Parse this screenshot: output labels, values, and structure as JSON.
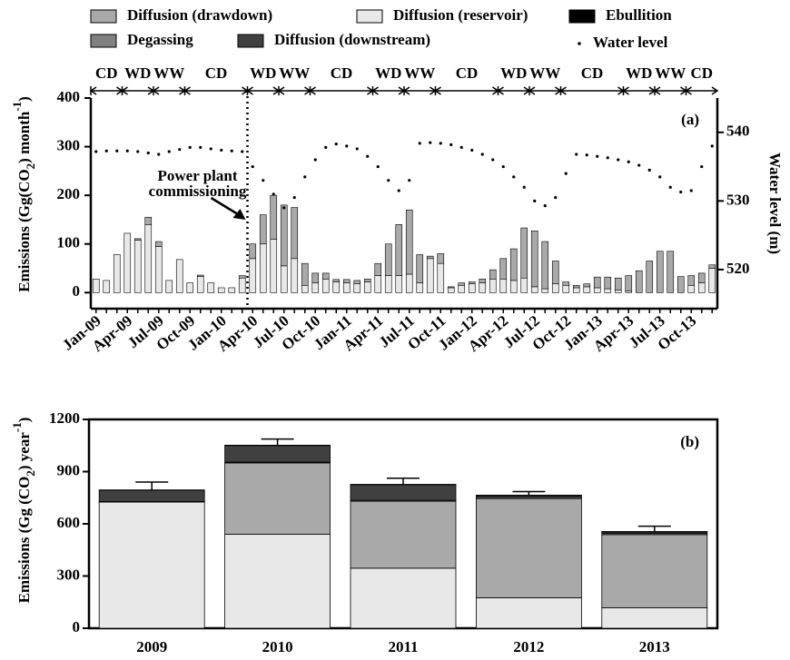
{
  "chart_data": [
    {
      "type": "bar",
      "stacked": true,
      "title": "(a)",
      "ylabel_parts": [
        "Emissions (Gg(CO",
        "2",
        ") month",
        "-1",
        ")"
      ],
      "y2label": "Water level (m)",
      "categories": [
        "Jan-09",
        null,
        null,
        "Apr-09",
        null,
        null,
        "Jul-09",
        null,
        null,
        "Oct-09",
        null,
        null,
        "Jan-10",
        null,
        null,
        "Apr-10",
        null,
        null,
        "Jul-10",
        null,
        null,
        "Oct-10",
        null,
        null,
        "Jan-11",
        null,
        null,
        "Apr-11",
        null,
        null,
        "Jul-11",
        null,
        null,
        "Oct-11",
        null,
        null,
        "Jan-12",
        null,
        null,
        "Apr-12",
        null,
        null,
        "Jul-12",
        null,
        null,
        "Oct-12",
        null,
        null,
        "Jan-13",
        null,
        null,
        "Apr-13",
        null,
        null,
        "Jul-13",
        null,
        null,
        "Oct-13",
        null,
        null
      ],
      "series": [
        {
          "name": "Diffusion (reservoir)",
          "color": "#e8e8e8",
          "values": [
            28,
            25,
            78,
            122,
            108,
            140,
            95,
            25,
            68,
            20,
            33,
            20,
            10,
            10,
            30,
            70,
            100,
            110,
            55,
            70,
            15,
            20,
            28,
            22,
            20,
            18,
            22,
            35,
            35,
            35,
            38,
            20,
            70,
            60,
            10,
            15,
            18,
            20,
            28,
            28,
            25,
            30,
            12,
            8,
            18,
            15,
            10,
            12,
            10,
            8,
            5,
            3,
            0,
            0,
            0,
            0,
            0,
            15,
            20,
            50
          ]
        },
        {
          "name": "Diffusion (drawdown)",
          "color": "#a9a9a9",
          "values": [
            0,
            0,
            0,
            0,
            3,
            15,
            10,
            0,
            0,
            0,
            3,
            0,
            0,
            0,
            5,
            30,
            60,
            90,
            125,
            105,
            45,
            20,
            12,
            5,
            7,
            7,
            6,
            25,
            65,
            105,
            132,
            58,
            5,
            20,
            2,
            5,
            4,
            8,
            19,
            42,
            65,
            103,
            115,
            97,
            47,
            7,
            5,
            6,
            22,
            24,
            25,
            32,
            45,
            65,
            85,
            85,
            33,
            20,
            20,
            7
          ]
        },
        {
          "name": "Water level",
          "axis": "y2",
          "color": "#000000",
          "values": [
            537.2,
            537.3,
            537.3,
            537.3,
            537.2,
            537,
            536.8,
            537.2,
            537.5,
            537.8,
            537.8,
            537.6,
            537.4,
            537.3,
            537.2,
            535,
            533,
            531,
            529,
            530.5,
            533.5,
            536,
            537.8,
            538.3,
            538,
            537.6,
            536.5,
            535,
            533,
            531.5,
            533,
            538.4,
            538.5,
            538.4,
            538.2,
            537.8,
            537.4,
            536.8,
            536,
            535,
            533.5,
            532,
            530,
            529.3,
            530.5,
            534,
            536.8,
            536.7,
            536.5,
            536.3,
            536,
            535.7,
            535.2,
            534.5,
            533.5,
            532,
            531.3,
            531.5,
            535,
            538
          ]
        }
      ],
      "ylim": [
        -33,
        400
      ],
      "yticks": [
        0,
        100,
        200,
        300,
        400
      ],
      "y2lim": [
        514.3,
        545
      ],
      "y2ticks": [
        520,
        530,
        540
      ],
      "periods": [
        {
          "label": "CD",
          "months": [
            0,
            2
          ]
        },
        {
          "label": "WD",
          "months": [
            3,
            5
          ]
        },
        {
          "label": "WW",
          "months": [
            6,
            8
          ]
        },
        {
          "label": "CD",
          "months": [
            9,
            14
          ]
        },
        {
          "label": "WD",
          "months": [
            15,
            17
          ]
        },
        {
          "label": "WW",
          "months": [
            18,
            20
          ]
        },
        {
          "label": "CD",
          "months": [
            21,
            26
          ]
        },
        {
          "label": "WD",
          "months": [
            27,
            29
          ]
        },
        {
          "label": "WW",
          "months": [
            30,
            32
          ]
        },
        {
          "label": "CD",
          "months": [
            33,
            38
          ]
        },
        {
          "label": "WD",
          "months": [
            39,
            41
          ]
        },
        {
          "label": "WW",
          "months": [
            42,
            44
          ]
        },
        {
          "label": "CD",
          "months": [
            45,
            50
          ]
        },
        {
          "label": "WD",
          "months": [
            51,
            53
          ]
        },
        {
          "label": "WW",
          "months": [
            54,
            56
          ]
        },
        {
          "label": "CD",
          "months": [
            57,
            59
          ]
        }
      ],
      "annotation": {
        "lines": [
          "Power plant",
          "commissioning"
        ],
        "month": 15
      }
    },
    {
      "type": "bar",
      "stacked": true,
      "title": "(b)",
      "ylabel_parts": [
        "Emissions (Gg (CO",
        "2",
        ") year",
        "-1",
        ")"
      ],
      "categories": [
        "2009",
        "2010",
        "2011",
        "2012",
        "2013"
      ],
      "series": [
        {
          "name": "Diffusion (reservoir)",
          "color": "#e8e8e8",
          "values": [
            725,
            540,
            345,
            175,
            118
          ]
        },
        {
          "name": "Diffusion (drawdown)",
          "color": "#a9a9a9",
          "values": [
            0,
            410,
            385,
            570,
            420
          ]
        },
        {
          "name": "Degassing",
          "color": "#808080",
          "values": [
            3,
            5,
            5,
            8,
            8
          ]
        },
        {
          "name": "Diffusion (downstream)",
          "color": "#404040",
          "values": [
            65,
            95,
            90,
            10,
            8
          ]
        },
        {
          "name": "Ebullition",
          "color": "#000000",
          "values": [
            2,
            2,
            2,
            2,
            2
          ]
        }
      ],
      "errors": [
        45,
        35,
        35,
        20,
        30
      ],
      "ylim": [
        0,
        1200
      ],
      "yticks": [
        0,
        300,
        600,
        900,
        1200
      ]
    }
  ]
}
